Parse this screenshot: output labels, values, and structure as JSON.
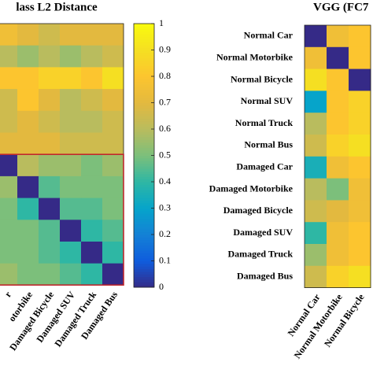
{
  "chart_data": [
    {
      "type": "heatmap",
      "title": "lass L2 Distance",
      "columns": [
        "r",
        "otorbike",
        "Damaged Bicycle",
        "Damaged SUV",
        "Damaged Truck",
        "Damaged Bus"
      ],
      "values": [
        [
          0.75,
          0.7,
          0.65,
          0.7,
          0.7,
          0.7
        ],
        [
          0.6,
          0.55,
          0.6,
          0.55,
          0.6,
          0.65
        ],
        [
          0.8,
          0.8,
          0.85,
          0.85,
          0.8,
          0.9
        ],
        [
          0.65,
          0.8,
          0.7,
          0.6,
          0.65,
          0.7
        ],
        [
          0.65,
          0.7,
          0.65,
          0.6,
          0.6,
          0.65
        ],
        [
          0.7,
          0.7,
          0.7,
          0.65,
          0.65,
          0.65
        ],
        [
          0,
          0.6,
          0.55,
          0.55,
          0.5,
          0.55
        ],
        [
          0.55,
          0,
          0.45,
          0.5,
          0.5,
          0.5
        ],
        [
          0.5,
          0.4,
          0,
          0.45,
          0.45,
          0.5
        ],
        [
          0.5,
          0.5,
          0.45,
          0,
          0.4,
          0.45
        ],
        [
          0.5,
          0.5,
          0.45,
          0.4,
          0,
          0.4
        ],
        [
          0.55,
          0.5,
          0.5,
          0.45,
          0.4,
          0
        ]
      ],
      "colormap": "parula",
      "clim": [
        0,
        1
      ],
      "cticks": [
        0,
        0.1,
        0.2,
        0.3,
        0.4,
        0.5,
        0.6,
        0.7,
        0.8,
        0.9,
        1
      ]
    },
    {
      "type": "heatmap",
      "title": "VGG (FC7",
      "rows": [
        "Normal Car",
        "Normal Motorbike",
        "Normal Bicycle",
        "Normal SUV",
        "Normal Truck",
        "Normal Bus",
        "Damaged Car",
        "Damaged Motorbike",
        "Damaged Bicycle",
        "Damaged SUV",
        "Damaged Truck",
        "Damaged Bus"
      ],
      "columns": [
        "Normal Car",
        "Normal Motorbike",
        "Normal Bicycle"
      ],
      "values": [
        [
          0,
          0.75,
          0.8
        ],
        [
          0.75,
          0,
          0.8
        ],
        [
          0.9,
          0.8,
          0
        ],
        [
          0.3,
          0.8,
          0.85
        ],
        [
          0.6,
          0.8,
          0.85
        ],
        [
          0.65,
          0.85,
          0.9
        ],
        [
          0.35,
          0.75,
          0.8
        ],
        [
          0.6,
          0.5,
          0.75
        ],
        [
          0.65,
          0.7,
          0.75
        ],
        [
          0.4,
          0.75,
          0.8
        ],
        [
          0.55,
          0.75,
          0.8
        ],
        [
          0.65,
          0.85,
          0.9
        ]
      ],
      "colormap": "parula",
      "clim": [
        0,
        1
      ]
    }
  ]
}
